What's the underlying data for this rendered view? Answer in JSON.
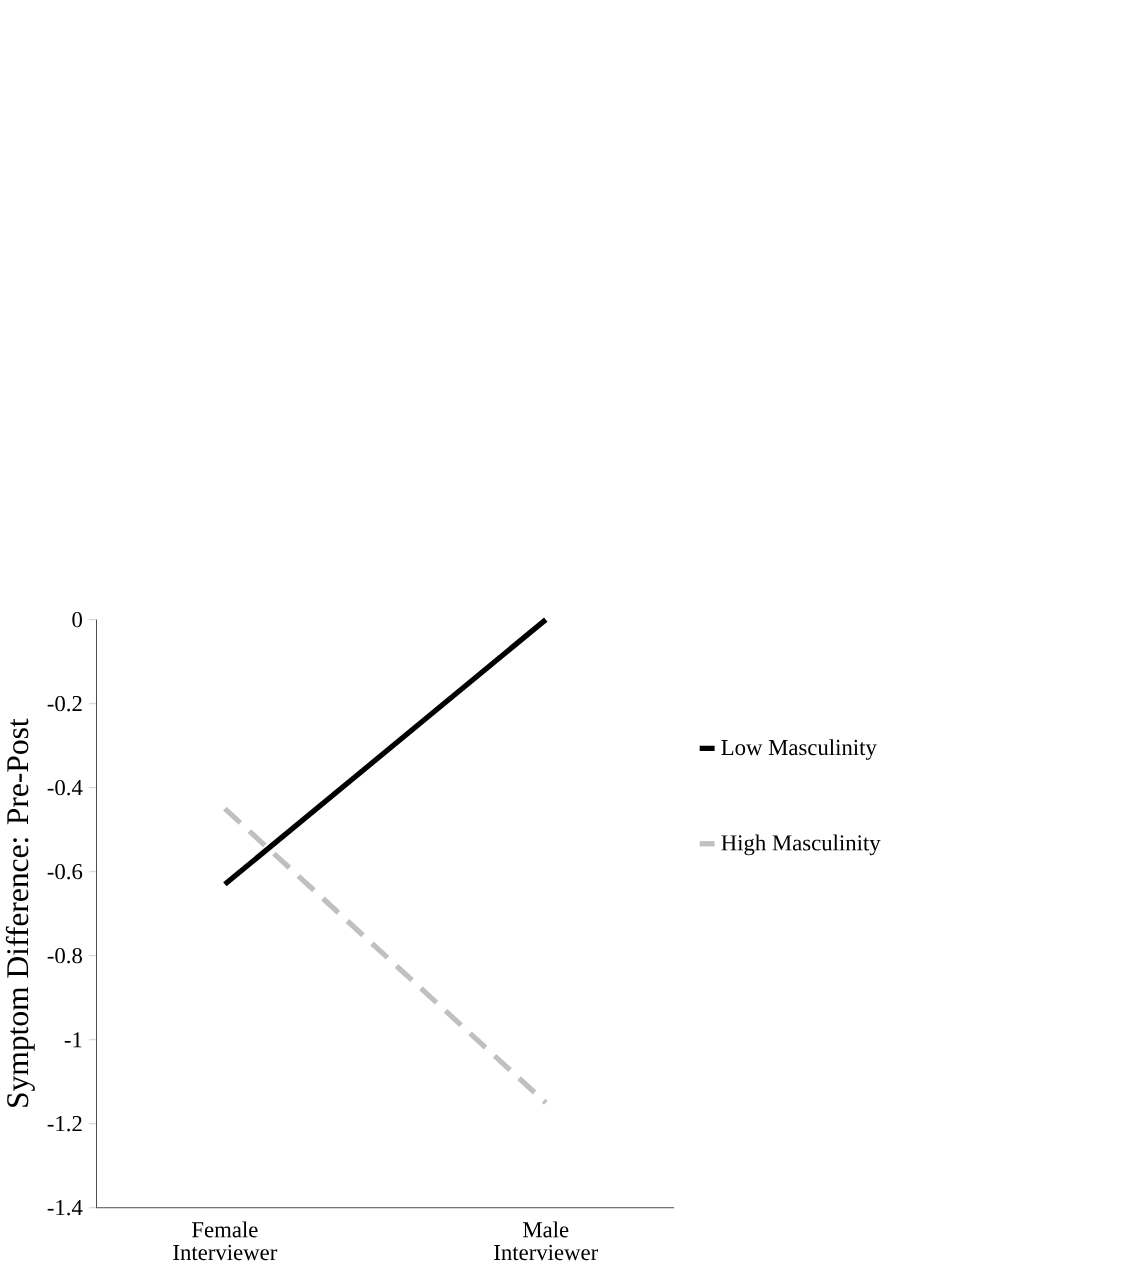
{
  "chart_data": {
    "type": "line",
    "ylabel": "Symptom Difference:  Pre-Post",
    "categories": [
      "Female Interviewer",
      "Male Interviewer"
    ],
    "series": [
      {
        "name": "Low Masculinity",
        "color": "#000000",
        "line_style": "solid",
        "values": [
          -0.63,
          0
        ]
      },
      {
        "name": "High Masculinity",
        "color": "#c0c0c0",
        "line_style": "dashed",
        "values": [
          -0.45,
          -1.15
        ]
      }
    ],
    "ylim": [
      -1.4,
      0
    ],
    "yticks": [
      -1.4,
      -1.2,
      -1,
      -0.8,
      -0.6,
      -0.4,
      -0.2,
      0
    ],
    "grid": false,
    "legend": "right",
    "marker": "none"
  }
}
